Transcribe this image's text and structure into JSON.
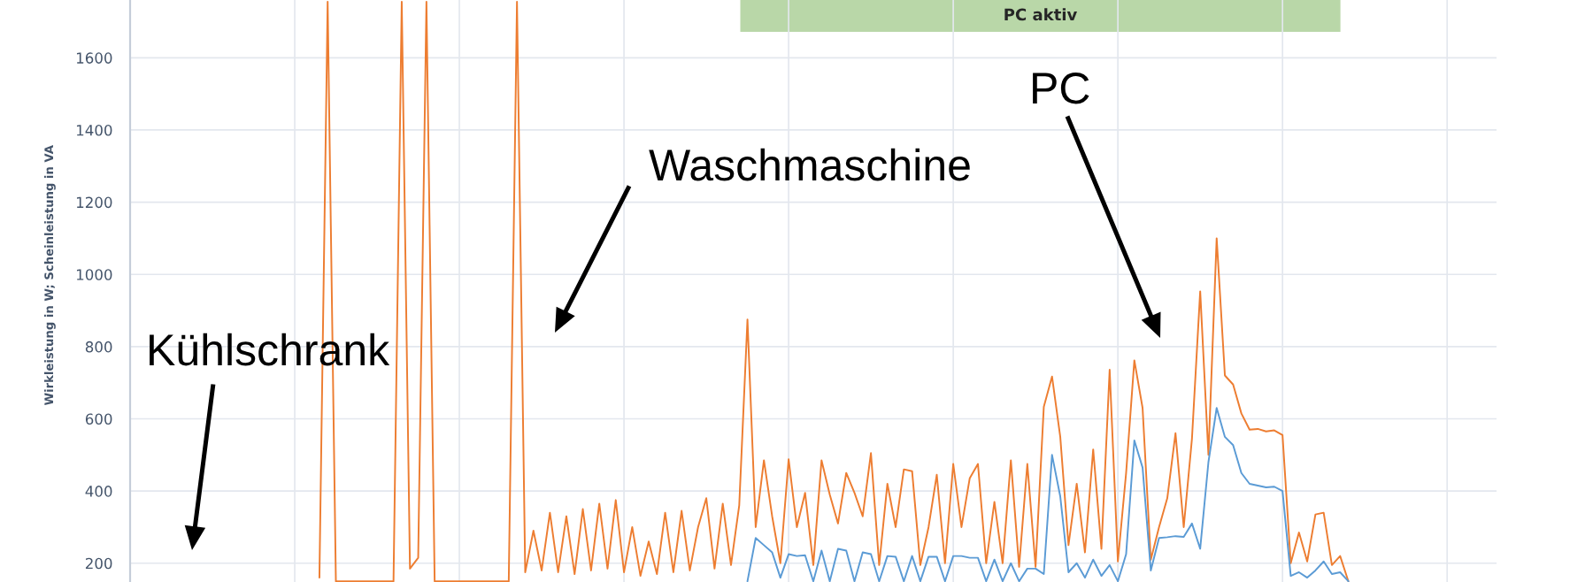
{
  "chart_data": {
    "type": "line",
    "ylabel": "Wirkleistung in W; Scheinleistung in VA",
    "categories": [
      null,
      null,
      null,
      null,
      null,
      null,
      null,
      null,
      null,
      null,
      null,
      null,
      null,
      null,
      null,
      null,
      null,
      null,
      null,
      null,
      null,
      null,
      null,
      null,
      null,
      null,
      null,
      null,
      null,
      null,
      null,
      null,
      null,
      null,
      null,
      null,
      null,
      null,
      null,
      null,
      null,
      null,
      null,
      null,
      null,
      null,
      null,
      null,
      null,
      null,
      null,
      null,
      null,
      null,
      null,
      null,
      null,
      null,
      null,
      null,
      null,
      null,
      null,
      null,
      null,
      null,
      null,
      null,
      null,
      null,
      null,
      null,
      null,
      null,
      null,
      null,
      null,
      null,
      null,
      null,
      null,
      null,
      null,
      null,
      null,
      null,
      null,
      null,
      null,
      null,
      null,
      null,
      null,
      null,
      null,
      null,
      null,
      null,
      null,
      null,
      null,
      null,
      null,
      null,
      null,
      null,
      null,
      null,
      null,
      null,
      null,
      null,
      null,
      null,
      null,
      null,
      null,
      null,
      null,
      null,
      null,
      null,
      null,
      null,
      null,
      null,
      null,
      null,
      null,
      null,
      null,
      null,
      null,
      null,
      null,
      null,
      null,
      null,
      null,
      null,
      null,
      null,
      null,
      null,
      null,
      null,
      null,
      null,
      null,
      null,
      null,
      null,
      null,
      null,
      null,
      null,
      null,
      null,
      null,
      null,
      null,
      null,
      null,
      null,
      null,
      null,
      null
    ],
    "series": [
      {
        "color": "#ed7d31",
        "values": [
          null,
          null,
          null,
          null,
          null,
          null,
          null,
          null,
          null,
          null,
          null,
          null,
          null,
          null,
          null,
          null,
          null,
          null,
          null,
          null,
          null,
          null,
          null,
          160,
          1755,
          150,
          150,
          150,
          150,
          150,
          150,
          150,
          150,
          1755,
          185,
          215,
          1755,
          150,
          150,
          150,
          150,
          150,
          150,
          150,
          150,
          150,
          150,
          1755,
          175,
          290,
          180,
          340,
          175,
          330,
          170,
          350,
          180,
          365,
          185,
          375,
          175,
          300,
          165,
          260,
          170,
          340,
          175,
          345,
          180,
          300,
          380,
          185,
          365,
          195,
          360,
          875,
          300,
          485,
          330,
          200,
          488,
          300,
          395,
          195,
          485,
          390,
          310,
          450,
          395,
          330,
          505,
          195,
          420,
          300,
          460,
          455,
          195,
          300,
          445,
          200,
          475,
          300,
          435,
          475,
          200,
          370,
          200,
          485,
          190,
          475,
          190,
          633,
          717,
          550,
          250,
          420,
          230,
          515,
          240,
          736,
          205,
          450,
          762,
          630,
          210,
          300,
          380,
          560,
          300,
          545,
          953,
          500,
          1100,
          720,
          695,
          615,
          570,
          572,
          565,
          568,
          555,
          200,
          285,
          205,
          335,
          340,
          195,
          220,
          150,
          null,
          null,
          null,
          null,
          null,
          null,
          null,
          null,
          null,
          null,
          null,
          null,
          null,
          null,
          null,
          null,
          null,
          null
        ]
      },
      {
        "color": "#5b9bd5",
        "values": [
          null,
          null,
          null,
          null,
          null,
          null,
          null,
          null,
          null,
          null,
          null,
          null,
          null,
          null,
          null,
          null,
          null,
          null,
          null,
          null,
          null,
          null,
          null,
          null,
          null,
          null,
          null,
          null,
          null,
          null,
          null,
          null,
          null,
          null,
          null,
          null,
          null,
          null,
          null,
          null,
          null,
          null,
          null,
          null,
          null,
          null,
          null,
          null,
          null,
          null,
          null,
          null,
          null,
          null,
          null,
          null,
          null,
          null,
          null,
          null,
          null,
          null,
          null,
          null,
          null,
          null,
          null,
          null,
          null,
          null,
          null,
          null,
          null,
          null,
          null,
          150,
          270,
          250,
          230,
          160,
          225,
          220,
          222,
          150,
          235,
          150,
          240,
          235,
          150,
          230,
          225,
          150,
          220,
          218,
          150,
          220,
          150,
          218,
          218,
          150,
          220,
          220,
          215,
          215,
          150,
          210,
          150,
          200,
          150,
          185,
          185,
          170,
          500,
          385,
          175,
          200,
          160,
          210,
          165,
          195,
          150,
          225,
          540,
          465,
          180,
          270,
          272,
          275,
          273,
          310,
          240,
          480,
          630,
          550,
          527,
          450,
          420,
          415,
          410,
          412,
          400,
          165,
          175,
          160,
          180,
          205,
          170,
          175,
          150,
          null,
          null,
          null,
          null,
          null,
          null,
          null,
          null,
          null,
          null,
          null,
          null,
          null,
          null,
          null,
          null,
          null,
          null
        ]
      }
    ],
    "ylim": [
      148,
      1760
    ],
    "yticks": [
      200,
      400,
      600,
      800,
      1000,
      1200,
      1400,
      1600
    ],
    "grid": true,
    "tick_labels": "y",
    "annotations": [
      "PC aktiv",
      "Kühlschrank",
      "Waschmaschine",
      "PC"
    ]
  }
}
